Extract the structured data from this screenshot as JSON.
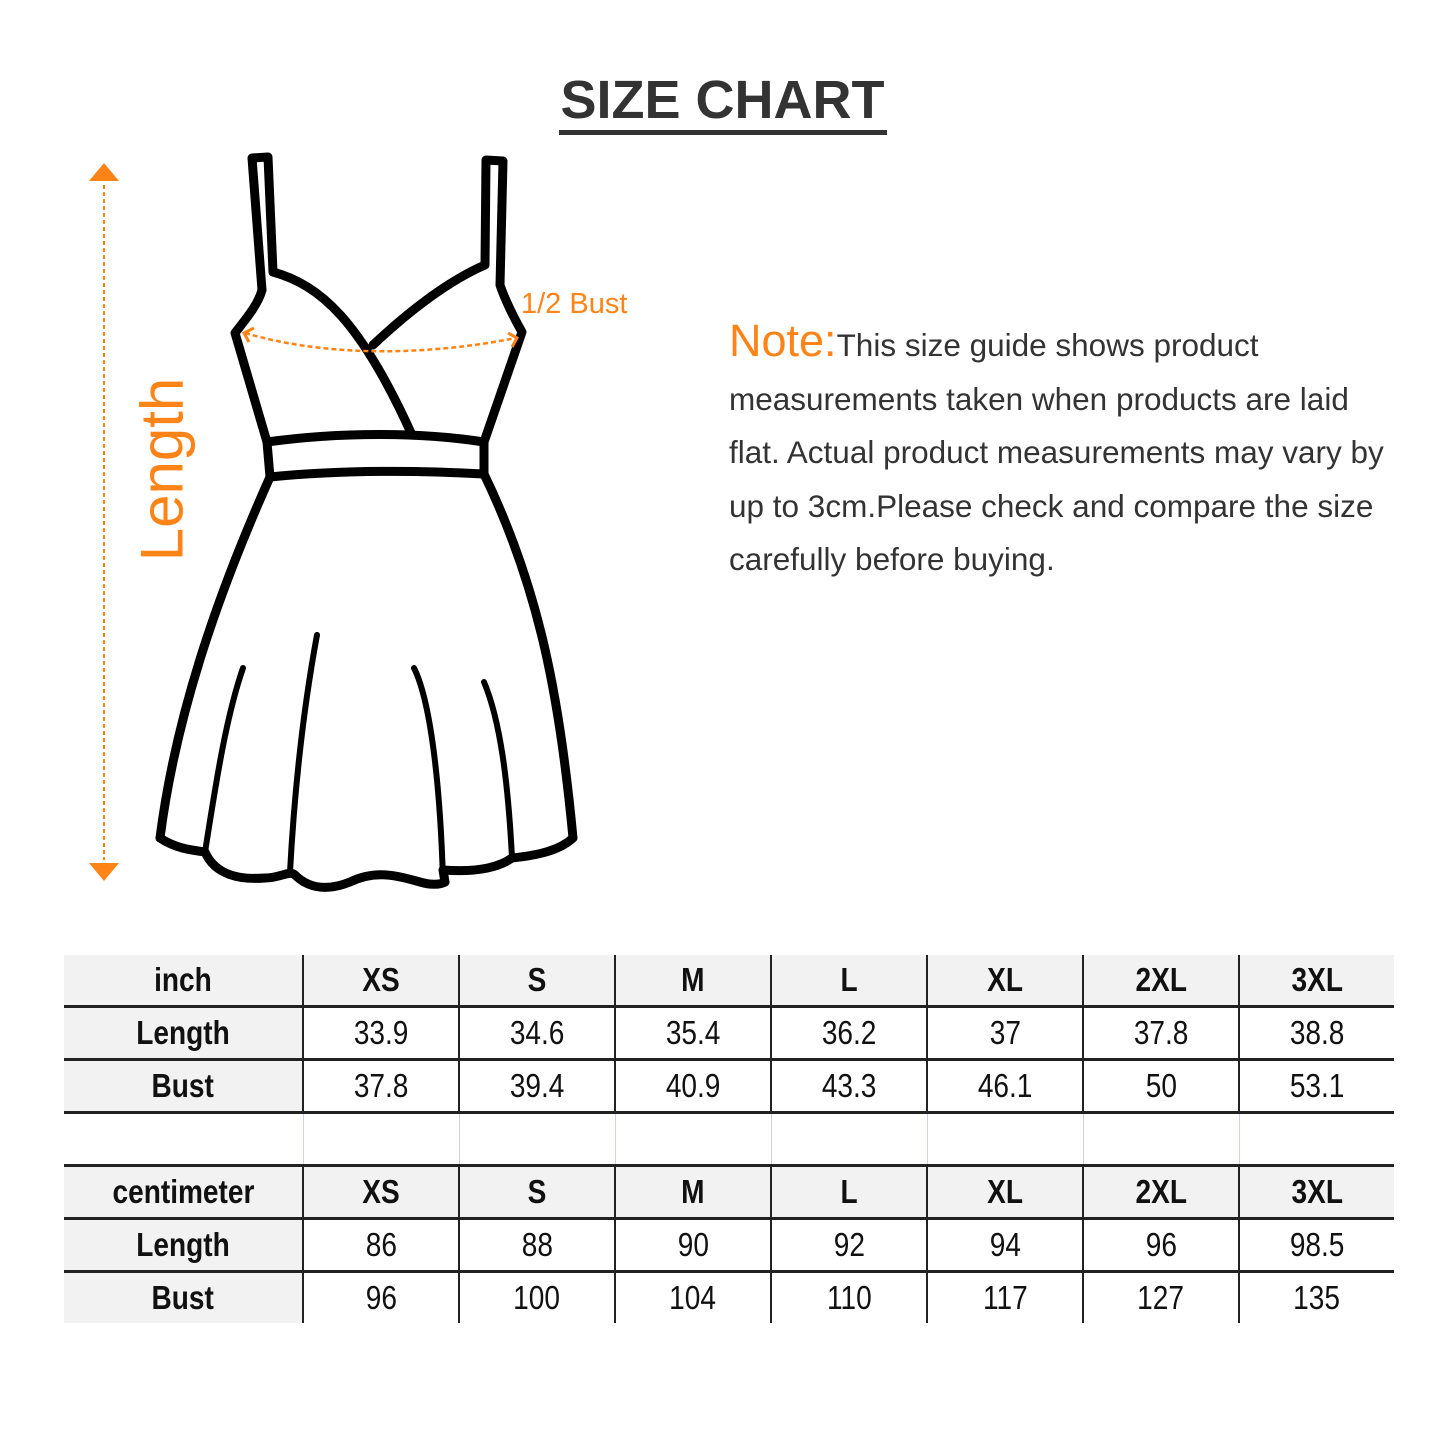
{
  "title": "SIZE CHART",
  "diagram": {
    "length_label": "Length",
    "bust_label": "1/2 Bust",
    "accent_color": "#ff8418"
  },
  "note": {
    "label": "Note:",
    "text": "This size guide shows product measurements taken when products are laid flat. Actual product measurements may vary by up to 3cm.Please check and compare the size carefully before buying."
  },
  "tables": [
    {
      "unit": "inch",
      "sizes": [
        "XS",
        "S",
        "M",
        "L",
        "XL",
        "2XL",
        "3XL"
      ],
      "rows": [
        {
          "label": "Length",
          "values": [
            "33.9",
            "34.6",
            "35.4",
            "36.2",
            "37",
            "37.8",
            "38.8"
          ]
        },
        {
          "label": "Bust",
          "values": [
            "37.8",
            "39.4",
            "40.9",
            "43.3",
            "46.1",
            "50",
            "53.1"
          ]
        }
      ]
    },
    {
      "unit": "centimeter",
      "sizes": [
        "XS",
        "S",
        "M",
        "L",
        "XL",
        "2XL",
        "3XL"
      ],
      "rows": [
        {
          "label": "Length",
          "values": [
            "86",
            "88",
            "90",
            "92",
            "94",
            "96",
            "98.5"
          ]
        },
        {
          "label": "Bust",
          "values": [
            "96",
            "100",
            "104",
            "110",
            "117",
            "127",
            "135"
          ]
        }
      ]
    }
  ]
}
